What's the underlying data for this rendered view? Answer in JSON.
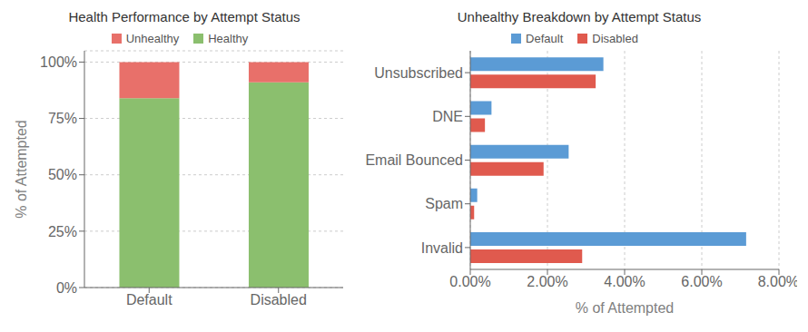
{
  "chart_data": [
    {
      "type": "bar",
      "title": "Health Performance by Attempt Status",
      "categories": [
        "Default",
        "Disabled"
      ],
      "series": [
        {
          "name": "Healthy",
          "color": "#8BBF6E",
          "values": [
            0.84,
            0.91
          ]
        },
        {
          "name": "Unhealthy",
          "color": "#E8706A",
          "values": [
            0.16,
            0.09
          ]
        }
      ],
      "stacked": true,
      "y_label": "% of Attempted",
      "ylim": [
        0,
        1.05
      ],
      "yticks": [
        {
          "value": 0,
          "label": "0%"
        },
        {
          "value": 0.25,
          "label": "25%"
        },
        {
          "value": 0.5,
          "label": "50%"
        },
        {
          "value": 0.75,
          "label": "75%"
        },
        {
          "value": 1.0,
          "label": "100%"
        }
      ],
      "grid": true,
      "legend": "top"
    },
    {
      "type": "bar",
      "orientation": "horizontal",
      "title": "Unhealthy Breakdown by Attempt Status",
      "categories": [
        "Unsubscribed",
        "DNE",
        "Email Bounced",
        "Spam",
        "Invalid"
      ],
      "series": [
        {
          "name": "Default",
          "color": "#5B9BD5",
          "values": [
            3.45,
            0.55,
            2.55,
            0.18,
            7.15
          ]
        },
        {
          "name": "Disabled",
          "color": "#E05A4E",
          "values": [
            3.25,
            0.38,
            1.9,
            0.1,
            2.9
          ]
        }
      ],
      "x_label": "% of Attempted",
      "xlim": [
        0,
        8.0
      ],
      "xticks": [
        {
          "value": 0,
          "label": "0.00%"
        },
        {
          "value": 2.0,
          "label": "2.00%"
        },
        {
          "value": 4.0,
          "label": "4.00%"
        },
        {
          "value": 6.0,
          "label": "6.00%"
        },
        {
          "value": 8.0,
          "label": "8.00%"
        }
      ],
      "grid": true,
      "legend": "top"
    }
  ]
}
